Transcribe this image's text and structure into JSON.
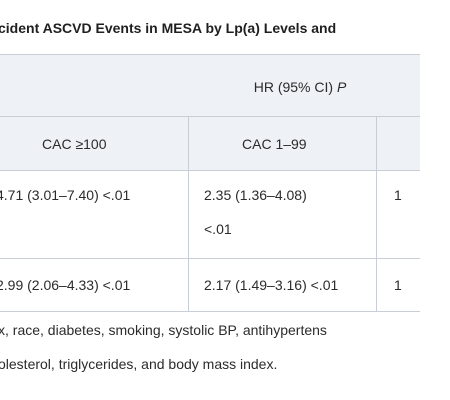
{
  "table": {
    "title": "cident ASCVD Events in MESA by Lp(a) Levels and",
    "group_header": {
      "label": "HR (95% CI) ",
      "p_symbol": "P"
    },
    "columns": [
      "CAC ≥100",
      "CAC 1–99",
      ""
    ],
    "rows": [
      {
        "cac_ge_100": "4.71 (3.01–7.40) <.01",
        "cac_1_99_line1": "2.35 (1.36–4.08)",
        "cac_1_99_line2": "<.01",
        "next_col": "1"
      },
      {
        "cac_ge_100": "2.99 (2.06–4.33) <.01",
        "cac_1_99_line1": "2.17 (1.49–3.16) <.01",
        "next_col": "1"
      }
    ]
  },
  "footnote": {
    "line1": "x, race, diabetes, smoking, systolic BP, antihypertens",
    "line2": "olesterol, triglycerides, and body mass index."
  }
}
